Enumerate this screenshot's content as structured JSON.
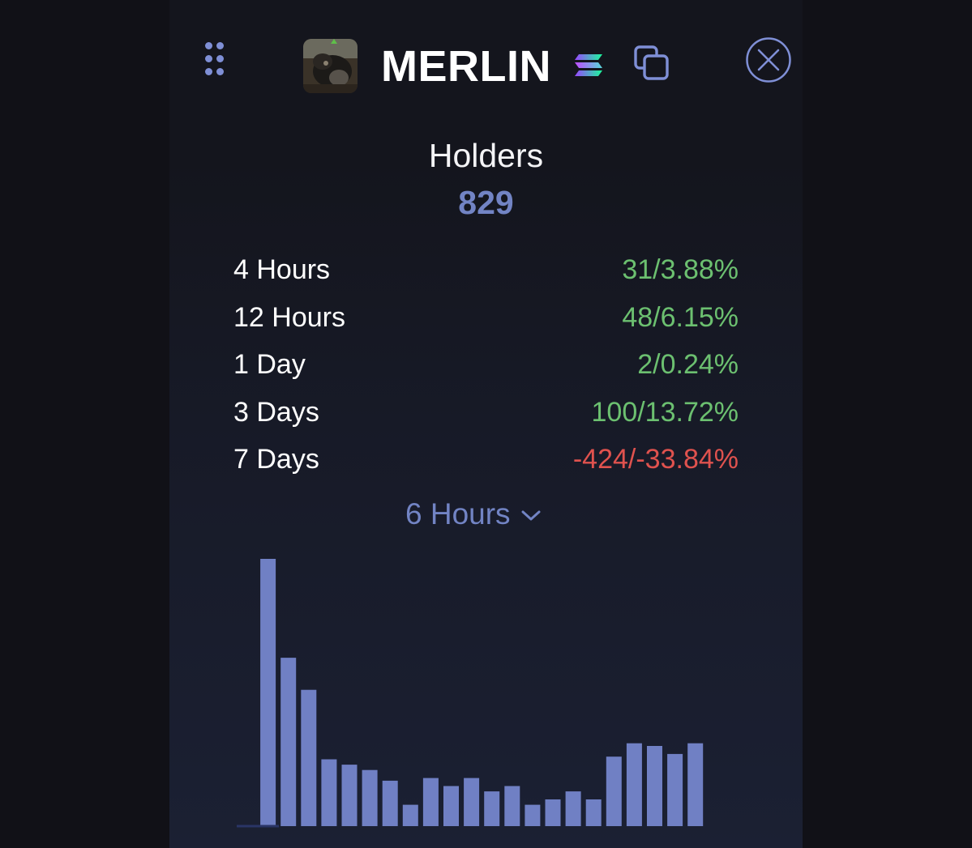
{
  "token": {
    "name": "MERLIN",
    "chain_icon": "solana-icon",
    "avatar_icon": "token-avatar-image",
    "copy_icon": "copy-icon",
    "close_icon": "close-icon",
    "drag_icon": "drag-handle-icon"
  },
  "holders": {
    "title": "Holders",
    "count": "829"
  },
  "stats": [
    {
      "label": "4 Hours",
      "value": "31/3.88%",
      "trend": "up"
    },
    {
      "label": "12 Hours",
      "value": "48/6.15%",
      "trend": "up"
    },
    {
      "label": "1 Day",
      "value": "2/0.24%",
      "trend": "up"
    },
    {
      "label": "3 Days",
      "value": "100/13.72%",
      "trend": "up"
    },
    {
      "label": "7 Days",
      "value": "-424/-33.84%",
      "trend": "down"
    }
  ],
  "interval_selector": {
    "selected": "6 Hours"
  },
  "colors": {
    "accent": "#7284c4",
    "positive": "#6cc070",
    "negative": "#e0524e",
    "bar": "#7080c4"
  },
  "chart_data": {
    "type": "bar",
    "values": [
      0,
      100,
      63,
      51,
      25,
      23,
      21,
      17,
      8,
      18,
      15,
      18,
      13,
      15,
      8,
      10,
      13,
      10,
      26,
      31,
      30,
      27,
      31
    ],
    "ylim": [
      0,
      100
    ]
  }
}
